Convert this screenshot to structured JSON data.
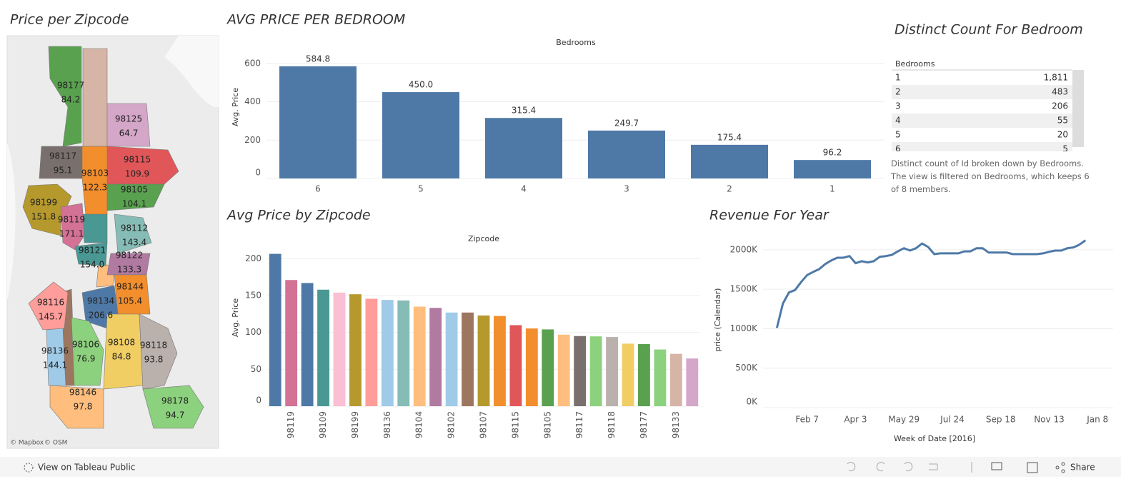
{
  "map": {
    "title": "Price per Zipcode",
    "attribution": [
      "© Mapbox",
      "© OSM"
    ],
    "regions": [
      {
        "zipcode": "98177",
        "value": "84.2",
        "color": "#59a14f"
      },
      {
        "zipcode": "98125",
        "value": "64.7",
        "color": "#d4a6c8"
      },
      {
        "zipcode": "98117",
        "value": "95.1",
        "color": "#79706e"
      },
      {
        "zipcode": "98115",
        "value": "109.9",
        "color": "#e15759"
      },
      {
        "zipcode": "98103",
        "value": "122.3",
        "color": "#f28e2b"
      },
      {
        "zipcode": "98105",
        "value": "104.1",
        "color": "#59a14f"
      },
      {
        "zipcode": "98199",
        "value": "151.8",
        "color": "#b6992d"
      },
      {
        "zipcode": "98119",
        "value": "171.1",
        "color": "#d37295"
      },
      {
        "zipcode": "98112",
        "value": "143.4",
        "color": "#86bcb6"
      },
      {
        "zipcode": "98121",
        "value": "154.0",
        "color": "#499894"
      },
      {
        "zipcode": "98122",
        "value": "133.3",
        "color": "#b07aa1"
      },
      {
        "zipcode": "98144",
        "value": "105.4",
        "color": "#f28e2b"
      },
      {
        "zipcode": "98116",
        "value": "145.7",
        "color": "#ff9d9a"
      },
      {
        "zipcode": "98134",
        "value": "206.6",
        "color": "#4e79a7"
      },
      {
        "zipcode": "98136",
        "value": "144.1",
        "color": "#a0cbe8"
      },
      {
        "zipcode": "98106",
        "value": "76.9",
        "color": "#8cd17d"
      },
      {
        "zipcode": "98108",
        "value": "84.8",
        "color": "#f1ce63"
      },
      {
        "zipcode": "98118",
        "value": "93.8",
        "color": "#bab0ac"
      },
      {
        "zipcode": "98146",
        "value": "97.8",
        "color": "#ffbe7d"
      },
      {
        "zipcode": "98178",
        "value": "94.7",
        "color": "#8cd17d"
      }
    ]
  },
  "chart_data": [
    {
      "type": "bar",
      "title": "AVG PRICE PER BEDROOM",
      "x_label": "Bedrooms",
      "y_label": "Avg. Price",
      "categories": [
        "6",
        "5",
        "4",
        "3",
        "2",
        "1"
      ],
      "values": [
        584.8,
        450.0,
        315.4,
        249.7,
        175.4,
        96.2
      ],
      "value_labels": [
        "584.8",
        "450.0",
        "315.4",
        "249.7",
        "175.4",
        "96.2"
      ],
      "color": "#4e79a7",
      "ylim": [
        0,
        640
      ],
      "yticks": [
        0,
        200,
        400,
        600
      ],
      "grid": true
    },
    {
      "type": "bar",
      "title": "Avg Price by Zipcode",
      "x_label": "Zipcode",
      "y_label": "Avg. Price",
      "categories": [
        null,
        "98119",
        null,
        "98109",
        null,
        "98199",
        null,
        "98136",
        null,
        "98104",
        null,
        "98102",
        null,
        "98107",
        null,
        "98115",
        null,
        "98105",
        null,
        "98117",
        null,
        "98118",
        null,
        "98177",
        null,
        "98133",
        null
      ],
      "values": [
        206.6,
        171.1,
        167,
        158,
        154.0,
        151.8,
        145.7,
        144.1,
        143.4,
        135,
        133.3,
        127,
        127,
        123,
        122.3,
        109.9,
        105.4,
        104.1,
        97,
        95.1,
        94.7,
        93.8,
        84.8,
        84.2,
        76.9,
        71,
        64.7
      ],
      "colors": [
        "#4e79a7",
        "#d37295",
        "#4e79a7",
        "#499894",
        "#fabfd2",
        "#b6992d",
        "#ff9d9a",
        "#a0cbe8",
        "#86bcb6",
        "#ffbe7d",
        "#b07aa1",
        "#a0cbe8",
        "#9d7660",
        "#b6992d",
        "#f28e2b",
        "#e15759",
        "#f28e2b",
        "#59a14f",
        "#ffbe7d",
        "#79706e",
        "#8cd17d",
        "#bab0ac",
        "#f1ce63",
        "#59a14f",
        "#8cd17d",
        "#d7b5a6",
        "#d4a6c8"
      ],
      "ylim": [
        0,
        212
      ],
      "yticks": [
        0,
        50,
        100,
        150,
        200
      ],
      "grid": true
    },
    {
      "type": "line",
      "title": "Revenue For Year",
      "x_label": "Week of Date [2016]",
      "y_label": "price (Calendar)",
      "x": [
        "2016-01-03",
        "2016-01-10",
        "2016-01-17",
        "2016-01-24",
        "2016-01-31",
        "2016-02-07",
        "2016-02-14",
        "2016-02-21",
        "2016-02-28",
        "2016-03-06",
        "2016-03-13",
        "2016-03-20",
        "2016-03-27",
        "2016-04-03",
        "2016-04-10",
        "2016-04-17",
        "2016-04-24",
        "2016-05-01",
        "2016-05-08",
        "2016-05-15",
        "2016-05-22",
        "2016-05-29",
        "2016-06-05",
        "2016-06-12",
        "2016-06-19",
        "2016-06-26",
        "2016-07-03",
        "2016-07-10",
        "2016-07-17",
        "2016-07-24",
        "2016-07-31",
        "2016-08-07",
        "2016-08-14",
        "2016-08-21",
        "2016-08-28",
        "2016-09-04",
        "2016-09-11",
        "2016-09-18",
        "2016-09-25",
        "2016-10-02",
        "2016-10-09",
        "2016-10-16",
        "2016-10-23",
        "2016-10-30",
        "2016-11-06",
        "2016-11-13",
        "2016-11-20",
        "2016-11-27",
        "2016-12-04",
        "2016-12-11",
        "2016-12-18",
        "2016-12-25"
      ],
      "values": [
        1010000,
        1320000,
        1460000,
        1490000,
        1590000,
        1680000,
        1720000,
        1755000,
        1820000,
        1865000,
        1900000,
        1900000,
        1920000,
        1830000,
        1855000,
        1840000,
        1855000,
        1910000,
        1920000,
        1935000,
        1980000,
        2020000,
        1990000,
        2020000,
        2080000,
        2035000,
        1945000,
        1955000,
        1955000,
        1955000,
        1955000,
        1980000,
        1980000,
        2020000,
        2020000,
        1965000,
        1965000,
        1965000,
        1965000,
        1945000,
        1945000,
        1945000,
        1945000,
        1945000,
        1955000,
        1975000,
        1990000,
        1990000,
        2020000,
        2030000,
        2065000,
        2120000
      ],
      "color": "#4e79a7",
      "xlim": [
        "2015-12-18",
        "2017-01-26"
      ],
      "xticks": [
        {
          "value": "2016-02-07",
          "label": "Feb 7"
        },
        {
          "value": "2016-04-03",
          "label": "Apr 3"
        },
        {
          "value": "2016-05-29",
          "label": "May 29"
        },
        {
          "value": "2016-07-24",
          "label": "Jul 24"
        },
        {
          "value": "2016-09-18",
          "label": "Sep 18"
        },
        {
          "value": "2016-11-13",
          "label": "Nov 13"
        },
        {
          "value": "2017-01-08",
          "label": "Jan 8"
        }
      ],
      "ylim": [
        0,
        2180000
      ],
      "yticks": [
        {
          "value": 0,
          "label": "0K"
        },
        {
          "value": 500000,
          "label": "500K"
        },
        {
          "value": 1000000,
          "label": "1000K"
        },
        {
          "value": 1500000,
          "label": "1500K"
        },
        {
          "value": 2000000,
          "label": "2000K"
        }
      ],
      "grid": true
    }
  ],
  "table": {
    "title": "Distinct Count For Bedroom",
    "header": "Bedrooms",
    "rows": [
      [
        "1",
        "1,811"
      ],
      [
        "2",
        "483"
      ],
      [
        "3",
        "206"
      ],
      [
        "4",
        "55"
      ],
      [
        "5",
        "20"
      ],
      [
        "6",
        "5"
      ]
    ],
    "caption": "Distinct count of Id broken down by Bedrooms. The view is filtered on Bedrooms, which keeps 6 of 8 members."
  },
  "toolbar": {
    "link": "View on Tableau Public",
    "share": "Share"
  }
}
